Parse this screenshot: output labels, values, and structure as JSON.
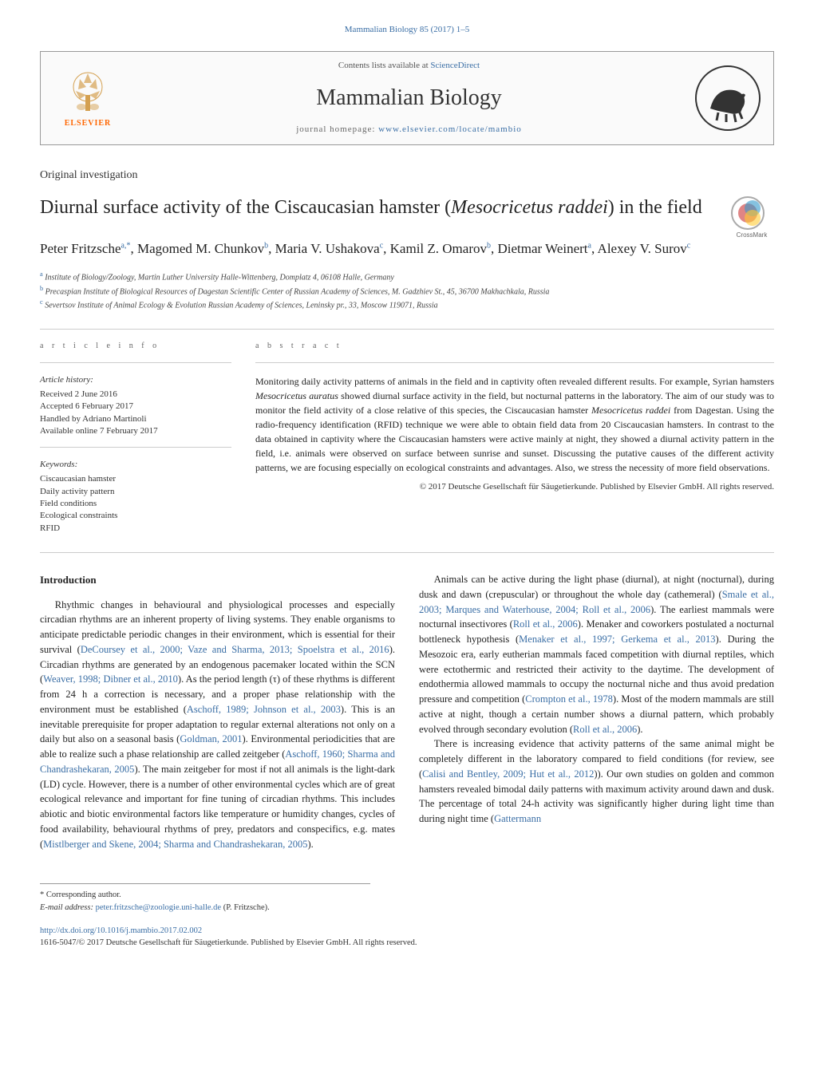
{
  "journal_ref": "Mammalian Biology 85 (2017) 1–5",
  "header": {
    "contents_text": "Contents lists available at ",
    "contents_link": "ScienceDirect",
    "journal_name": "Mammalian Biology",
    "homepage_label": "journal homepage: ",
    "homepage_url": "www.elsevier.com/locate/mambio",
    "elsevier_label": "ELSEVIER"
  },
  "article_type": "Original investigation",
  "title_html": "Diurnal surface activity of the Ciscaucasian hamster (<em>Mesocricetus raddei</em>) in the field",
  "authors_html": "Peter Fritzsche<sup>a,*</sup>, Magomed M. Chunkov<sup>b</sup>, Maria V. Ushakova<sup>c</sup>, Kamil Z. Omarov<sup>b</sup>, Dietmar Weinert<sup>a</sup>, Alexey V. Surov<sup>c</sup>",
  "affiliations": [
    {
      "sup": "a",
      "text": "Institute of Biology/Zoology, Martin Luther University Halle-Wittenberg, Domplatz 4, 06108 Halle, Germany"
    },
    {
      "sup": "b",
      "text": "Precaspian Institute of Biological Resources of Dagestan Scientific Center of Russian Academy of Sciences, M. Gadzhiev St., 45, 36700 Makhachkala, Russia"
    },
    {
      "sup": "c",
      "text": "Severtsov Institute of Animal Ecology & Evolution Russian Academy of Sciences, Leninsky pr., 33, Moscow 119071, Russia"
    }
  ],
  "article_info": {
    "heading": "a r t i c l e   i n f o",
    "history_heading": "Article history:",
    "history_lines": [
      "Received 2 June 2016",
      "Accepted 6 February 2017",
      "Handled by Adriano Martinoli",
      "Available online 7 February 2017"
    ],
    "keywords_heading": "Keywords:",
    "keywords": [
      "Ciscaucasian hamster",
      "Daily activity pattern",
      "Field conditions",
      "Ecological constraints",
      "RFID"
    ]
  },
  "abstract": {
    "heading": "a b s t r a c t",
    "text_html": "Monitoring daily activity patterns of animals in the field and in captivity often revealed different results. For example, Syrian hamsters <em>Mesocricetus auratus</em> showed diurnal surface activity in the field, but nocturnal patterns in the laboratory. The aim of our study was to monitor the field activity of a close relative of this species, the Ciscaucasian hamster <em>Mesocricetus raddei</em> from Dagestan. Using the radio-frequency identification (RFID) technique we were able to obtain field data from 20 Ciscaucasian hamsters. In contrast to the data obtained in captivity where the Ciscaucasian hamsters were active mainly at night, they showed a diurnal activity pattern in the field, i.e. animals were observed on surface between sunrise and sunset. Discussing the putative causes of the different activity patterns, we are focusing especially on ecological constraints and advantages. Also, we stress the necessity of more field observations.",
    "copyright": "© 2017 Deutsche Gesellschaft für Säugetierkunde. Published by Elsevier GmbH. All rights reserved."
  },
  "body": {
    "intro_heading": "Introduction",
    "p1_html": "Rhythmic changes in behavioural and physiological processes and especially circadian rhythms are an inherent property of living systems. They enable organisms to anticipate predictable periodic changes in their environment, which is essential for their survival (<a href='#'>DeCoursey et al., 2000; Vaze and Sharma, 2013; Spoelstra et al., 2016</a>). Circadian rhythms are generated by an endogenous pacemaker located within the SCN (<a href='#'>Weaver, 1998; Dibner et al., 2010</a>). As the period length (τ) of these rhythms is different from 24 h a correction is necessary, and a proper phase relationship with the environment must be established (<a href='#'>Aschoff, 1989; Johnson et al., 2003</a>). This is an inevitable prerequisite for proper adaptation to regular external alterations not only on a daily but also on a seasonal basis (<a href='#'>Goldman, 2001</a>). Environmental periodicities that are able to realize such a phase relationship are called zeitgeber (<a href='#'>Aschoff, 1960; Sharma and Chandrashekaran, 2005</a>). The main zeitgeber for most if not all animals is the light-dark (LD) cycle. However, there is a number of other environmental cycles which are of great ecological relevance and important for fine tuning of circadian rhythms. This includes abiotic and biotic environmental factors like temperature or humidity changes, cycles of food availability, behavioural rhythms of prey, predators and conspecifics, e.g. mates (<a href='#'>Mistlberger and Skene, 2004; Sharma and Chandrashekaran, 2005</a>).",
    "p2_html": "Animals can be active during the light phase (diurnal), at night (nocturnal), during dusk and dawn (crepuscular) or throughout the whole day (cathemeral) (<a href='#'>Smale et al., 2003; Marques and Waterhouse, 2004; Roll et al., 2006</a>). The earliest mammals were nocturnal insectivores (<a href='#'>Roll et al., 2006</a>). Menaker and coworkers postulated a nocturnal bottleneck hypothesis (<a href='#'>Menaker et al., 1997; Gerkema et al., 2013</a>). During the Mesozoic era, early eutherian mammals faced competition with diurnal reptiles, which were ectothermic and restricted their activity to the daytime. The development of endothermia allowed mammals to occupy the nocturnal niche and thus avoid predation pressure and competition (<a href='#'>Crompton et al., 1978</a>). Most of the modern mammals are still active at night, though a certain number shows a diurnal pattern, which probably evolved through secondary evolution (<a href='#'>Roll et al., 2006</a>).",
    "p3_html": "There is increasing evidence that activity patterns of the same animal might be completely different in the laboratory compared to field conditions (for review, see (<a href='#'>Calisi and Bentley, 2009; Hut et al., 2012</a>)). Our own studies on golden and common hamsters revealed bimodal daily patterns with maximum activity around dawn and dusk. The percentage of total 24-h activity was significantly higher during light time than during night time (<a href='#'>Gattermann</a>"
  },
  "footer": {
    "corr_label": "* Corresponding author.",
    "email_label": "E-mail address: ",
    "email": "peter.fritzsche@zoologie.uni-halle.de",
    "email_author": " (P. Fritzsche).",
    "doi_url": "http://dx.doi.org/10.1016/j.mambio.2017.02.002",
    "issn_line": "1616-5047/© 2017 Deutsche Gesellschaft für Säugetierkunde. Published by Elsevier GmbH. All rights reserved."
  },
  "colors": {
    "link": "#3a6ea5",
    "elsevier_orange": "#ff6600",
    "text": "#222222",
    "border": "#999999"
  }
}
